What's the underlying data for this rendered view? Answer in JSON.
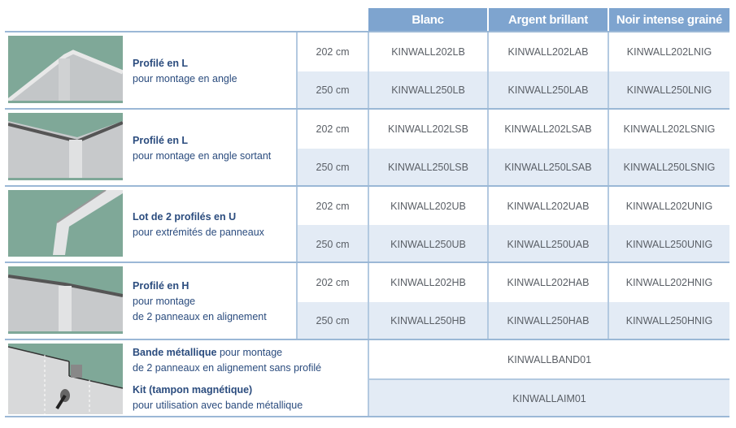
{
  "columns": [
    "Blanc",
    "Argent brillant",
    "Noir intense grainé"
  ],
  "products": [
    {
      "title": "Profilé en L",
      "subtitle": "pour montage en angle",
      "image": "l-profile-angle-image",
      "rows": [
        {
          "size": "202 cm",
          "codes": [
            "KINWALL202LB",
            "KINWALL202LAB",
            "KINWALL202LNIG"
          ]
        },
        {
          "size": "250 cm",
          "codes": [
            "KINWALL250LB",
            "KINWALL250LAB",
            "KINWALL250LNIG"
          ]
        }
      ]
    },
    {
      "title": "Profilé en L",
      "subtitle": "pour montage en angle sortant",
      "image": "l-profile-outer-angle-image",
      "rows": [
        {
          "size": "202 cm",
          "codes": [
            "KINWALL202LSB",
            "KINWALL202LSAB",
            "KINWALL202LSNIG"
          ]
        },
        {
          "size": "250 cm",
          "codes": [
            "KINWALL250LSB",
            "KINWALL250LSAB",
            "KINWALL250LSNIG"
          ]
        }
      ]
    },
    {
      "title": "Lot de 2 profilés en U",
      "subtitle": "pour extrémités de panneaux",
      "image": "u-profile-image",
      "rows": [
        {
          "size": "202 cm",
          "codes": [
            "KINWALL202UB",
            "KINWALL202UAB",
            "KINWALL202UNIG"
          ]
        },
        {
          "size": "250 cm",
          "codes": [
            "KINWALL250UB",
            "KINWALL250UAB",
            "KINWALL250UNIG"
          ]
        }
      ]
    },
    {
      "title": "Profilé en H",
      "subtitle": "pour montage",
      "subtitle2": "de 2 panneaux en alignement",
      "image": "h-profile-image",
      "rows": [
        {
          "size": "202 cm",
          "codes": [
            "KINWALL202HB",
            "KINWALL202HAB",
            "KINWALL202HNIG"
          ]
        },
        {
          "size": "250 cm",
          "codes": [
            "KINWALL250HB",
            "KINWALL250HAB",
            "KINWALL250HNIG"
          ]
        }
      ]
    }
  ],
  "accessories": [
    {
      "title": "Bande métallique",
      "title_rest": " pour montage",
      "subtitle": "de 2 panneaux en alignement sans profilé",
      "code": "KINWALLBAND01"
    },
    {
      "title": "Kit (tampon magnétique)",
      "subtitle": "pour utilisation avec bande métallique",
      "code": "KINWALLAIM01"
    }
  ],
  "colors": {
    "header": "#7ea4cf",
    "title": "#2b4c7e",
    "row_alt": "#e3ebf5",
    "border": "#9bb8d6"
  }
}
